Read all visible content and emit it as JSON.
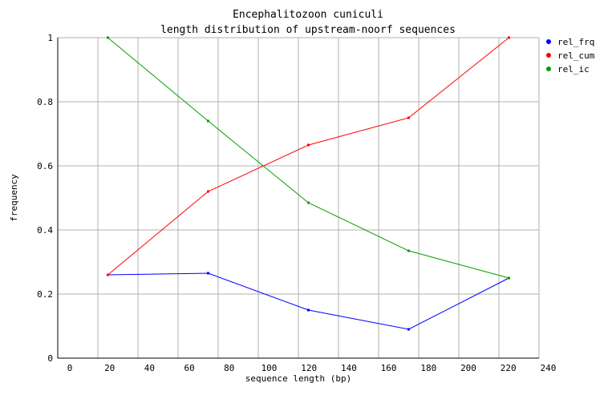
{
  "chart_data": {
    "type": "line",
    "title": "Encephalitozoon cuniculi",
    "subtitle": "length distribution of upstream-noorf sequences",
    "xlabel": "sequence length (bp)",
    "ylabel": "frequency",
    "xlim": [
      0,
      240
    ],
    "ylim": [
      0,
      1
    ],
    "xticks": [
      "0",
      "20",
      "40",
      "60",
      "80",
      "100",
      "120",
      "140",
      "160",
      "180",
      "200",
      "220",
      "240"
    ],
    "yticks": [
      "0",
      "0.2",
      "0.4",
      "0.6",
      "0.8",
      "1"
    ],
    "grid": true,
    "legend_position": "right",
    "x": [
      25,
      75,
      125,
      175,
      225
    ],
    "series": [
      {
        "name": "rel_frq",
        "color": "#0000ff",
        "values": [
          0.26,
          0.265,
          0.15,
          0.09,
          0.25
        ]
      },
      {
        "name": "rel_cum",
        "color": "#ff0000",
        "values": [
          0.26,
          0.52,
          0.665,
          0.75,
          1.0
        ]
      },
      {
        "name": "rel_ic",
        "color": "#00a000",
        "values": [
          1.0,
          0.74,
          0.485,
          0.335,
          0.25
        ]
      }
    ]
  }
}
